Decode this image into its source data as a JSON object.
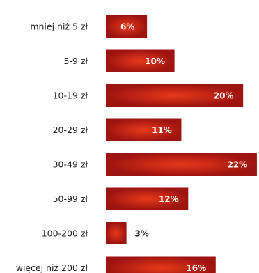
{
  "colors": {
    "bar_edge": "#9e1410",
    "bar_center": "#e8391a",
    "value_text_inside": "#ffffff",
    "value_text_outside": "#1a1a1a",
    "category_text": "#1f1f1f"
  },
  "chart_data": {
    "type": "bar",
    "orientation": "horizontal",
    "categories": [
      "mniej niż 5 zł",
      "5-9 zł",
      "10-19 zł",
      "20-29 zł",
      "30-49 zł",
      "50-99 zł",
      "100-200 zł",
      "więcej niż 200 zł"
    ],
    "values": [
      6,
      10,
      20,
      11,
      22,
      12,
      3,
      16
    ],
    "value_labels": [
      "6%",
      "10%",
      "20%",
      "11%",
      "22%",
      "12%",
      "3%",
      "16%"
    ],
    "unit": "%",
    "xlim": [
      0,
      22
    ],
    "grid": false,
    "legend": "none"
  }
}
